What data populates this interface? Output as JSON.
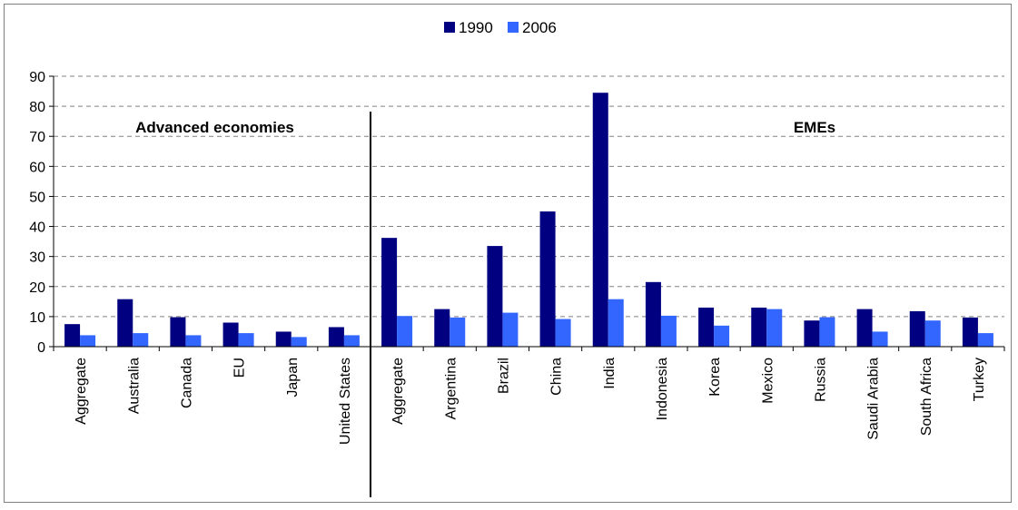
{
  "chart_data": {
    "type": "bar",
    "categories": [
      "Aggregate",
      "Australia",
      "Canada",
      "EU",
      "Japan",
      "United States",
      "Aggregate",
      "Argentina",
      "Brazil",
      "China",
      "India",
      "Indonesia",
      "Korea",
      "Mexico",
      "Russia",
      "Saudi Arabia",
      "South Africa",
      "Turkey"
    ],
    "series": [
      {
        "name": "1990",
        "color": "#000080",
        "values": [
          7.5,
          15.8,
          9.8,
          8.0,
          5.0,
          6.5,
          36.2,
          12.5,
          33.5,
          45.0,
          84.5,
          21.5,
          13.0,
          13.0,
          8.7,
          12.5,
          11.8,
          9.7
        ]
      },
      {
        "name": "2006",
        "color": "#3366FF",
        "values": [
          3.8,
          4.5,
          3.8,
          4.5,
          3.2,
          3.8,
          10.2,
          9.7,
          11.3,
          9.2,
          15.8,
          10.3,
          7.0,
          12.5,
          9.8,
          5.0,
          8.7,
          4.5
        ]
      }
    ],
    "ylim": [
      0,
      90
    ],
    "yticks": [
      0,
      10,
      20,
      30,
      40,
      50,
      60,
      70,
      80,
      90
    ],
    "grid": true,
    "legend_position": "top-center",
    "groups": [
      {
        "label": "Advanced economies",
        "count": 6
      },
      {
        "label": "EMEs",
        "count": 12
      }
    ]
  }
}
